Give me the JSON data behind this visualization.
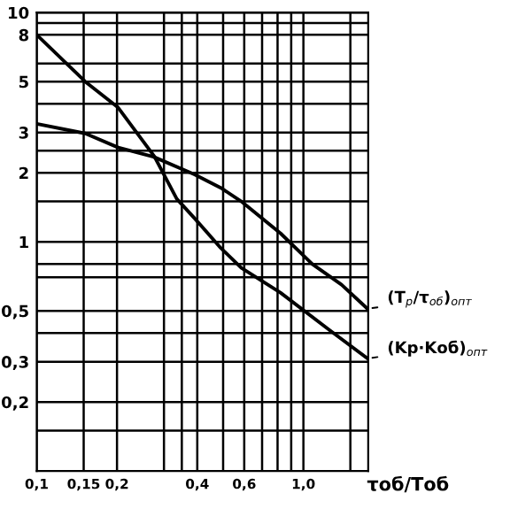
{
  "chart_data": {
    "type": "line",
    "xlabel": "τоб/Тоб",
    "log": "xy",
    "grid": true,
    "legend": false,
    "marker": "none",
    "line_style": "solid",
    "xlim": [
      0.1,
      1.75
    ],
    "ylim": [
      0.1,
      10
    ],
    "xticks": [
      {
        "value": 0.1,
        "label": "0,1"
      },
      {
        "value": 0.15,
        "label": "0,15"
      },
      {
        "value": 0.2,
        "label": "0,2"
      },
      {
        "value": 0.3,
        "label": null
      },
      {
        "value": 0.35,
        "label": null
      },
      {
        "value": 0.4,
        "label": "0,4"
      },
      {
        "value": 0.5,
        "label": null
      },
      {
        "value": 0.6,
        "label": "0,6"
      },
      {
        "value": 0.7,
        "label": null
      },
      {
        "value": 0.8,
        "label": null
      },
      {
        "value": 0.9,
        "label": null
      },
      {
        "value": 1.0,
        "label": "1,0"
      },
      {
        "value": 1.5,
        "label": null
      }
    ],
    "yticks": [
      {
        "value": 0.15,
        "label": null
      },
      {
        "value": 0.2,
        "label": "0,2"
      },
      {
        "value": 0.3,
        "label": "0,3"
      },
      {
        "value": 0.4,
        "label": null
      },
      {
        "value": 0.5,
        "label": "0,5"
      },
      {
        "value": 0.7,
        "label": null
      },
      {
        "value": 0.8,
        "label": null
      },
      1,
      {
        "value": 1.5,
        "label": null
      },
      2,
      {
        "value": 2.5,
        "label": null
      },
      3,
      {
        "value": 4,
        "label": null
      },
      5,
      {
        "value": 6,
        "label": null
      },
      8,
      {
        "value": 9,
        "label": null
      },
      10
    ],
    "series": [
      {
        "color": "#000000",
        "x": [
          0.1,
          0.152,
          0.202,
          0.276,
          0.335,
          0.39,
          0.49,
          0.585,
          0.82,
          1.26,
          1.74
        ],
        "values": [
          8,
          5,
          3.85,
          2.36,
          1.54,
          1.27,
          0.94,
          0.77,
          0.6,
          0.41,
          0.31
        ]
      },
      {
        "color": "#000000",
        "x": [
          0.1,
          0.152,
          0.202,
          0.274,
          0.39,
          0.49,
          0.585,
          0.82,
          1.08,
          1.39,
          1.74
        ],
        "values": [
          3.27,
          2.97,
          2.58,
          2.35,
          1.97,
          1.72,
          1.5,
          1.09,
          0.8,
          0.65,
          0.51
        ]
      }
    ],
    "annotations": [
      {
        "text": "(T$_{р}$/τ$_{об}$)$_{опт}$",
        "x": 1.74,
        "y": 0.51
      },
      {
        "text": "(Kр·Kоб)$_{опт}$",
        "x": 1.74,
        "y": 0.31
      }
    ]
  }
}
